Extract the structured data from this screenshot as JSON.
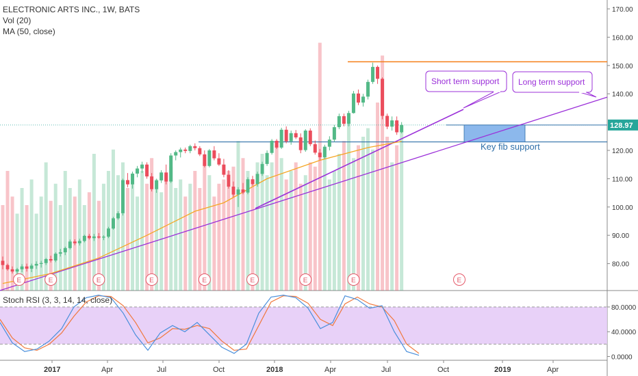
{
  "header": {
    "title": "ELECTRONIC ARTS INC., 1W, BATS",
    "vol_label": "Vol (20)",
    "ma_label": "MA (50, close)"
  },
  "stoch": {
    "label": "Stoch RSI (3, 3, 14, 14, close)"
  },
  "colors": {
    "up": "#53b987",
    "down": "#eb4d5c",
    "ma": "#f5a623",
    "trend": "#9b30d9",
    "resistance": "#f57f17",
    "fib_line": "#2f6fa8",
    "fib_box": "#7fb0ea",
    "stoch_k": "#4a8fdb",
    "stoch_d": "#f0783c",
    "stoch_band": "#e4c9f7",
    "earnings": "#e55a6a",
    "price_tag": "#26a69a"
  },
  "annotations": {
    "short_term": "Short term support",
    "long_term": "Long term support",
    "key_fib": "Key fib support"
  },
  "last_price": "128.97",
  "earnings_marker": "E",
  "chart_data": [
    {
      "type": "candlestick",
      "title": "ELECTRONIC ARTS INC., 1W, BATS",
      "x_ticks": [
        "2017",
        "Apr",
        "Jul",
        "Oct",
        "2018",
        "Apr",
        "Jul",
        "Oct",
        "2019",
        "Apr"
      ],
      "y_ticks": [
        "170.00",
        "160.00",
        "150.00",
        "140.00",
        "120.00",
        "110.00",
        "100.00",
        "90.00",
        "80.00"
      ],
      "ylim": [
        70,
        172
      ],
      "ohlc": [
        [
          81.0,
          82.5,
          78.0,
          79.5
        ],
        [
          79.5,
          80.0,
          77.5,
          78.0
        ],
        [
          78.0,
          79.0,
          76.5,
          77.2
        ],
        [
          77.2,
          78.5,
          76.0,
          78.0
        ],
        [
          78.0,
          79.8,
          77.0,
          79.0
        ],
        [
          79.0,
          80.0,
          77.2,
          78.2
        ],
        [
          78.2,
          80.0,
          77.0,
          79.3
        ],
        [
          79.3,
          80.8,
          78.1,
          79.9
        ],
        [
          79.9,
          81.0,
          78.6,
          80.2
        ],
        [
          80.2,
          82.0,
          79.5,
          81.6
        ],
        [
          81.6,
          82.8,
          80.4,
          81.1
        ],
        [
          81.1,
          84.0,
          80.5,
          83.5
        ],
        [
          83.5,
          85.2,
          82.5,
          84.0
        ],
        [
          84.0,
          86.0,
          83.0,
          85.5
        ],
        [
          85.5,
          88.5,
          85.0,
          87.8
        ],
        [
          87.8,
          88.6,
          86.5,
          87.2
        ],
        [
          87.2,
          88.8,
          86.4,
          88.0
        ],
        [
          88.0,
          90.2,
          87.5,
          89.8
        ],
        [
          89.8,
          90.5,
          88.5,
          89.0
        ],
        [
          89.0,
          90.5,
          88.0,
          89.6
        ],
        [
          89.6,
          90.8,
          88.8,
          89.2
        ],
        [
          89.2,
          90.0,
          88.3,
          89.5
        ],
        [
          89.5,
          93.0,
          89.0,
          92.4
        ],
        [
          92.4,
          96.5,
          92.0,
          96.0
        ],
        [
          96.0,
          98.5,
          95.5,
          97.8
        ],
        [
          97.8,
          110.0,
          97.0,
          109.5
        ],
        [
          109.5,
          112.0,
          107.0,
          108.0
        ],
        [
          108.0,
          112.5,
          106.5,
          111.8
        ],
        [
          111.8,
          114.5,
          110.5,
          113.6
        ],
        [
          113.6,
          116.0,
          112.0,
          115.0
        ],
        [
          115.0,
          115.8,
          110.0,
          110.8
        ],
        [
          110.8,
          112.0,
          105.5,
          106.3
        ],
        [
          106.3,
          110.0,
          105.0,
          109.4
        ],
        [
          109.4,
          113.0,
          108.5,
          112.2
        ],
        [
          112.2,
          115.0,
          108.0,
          109.0
        ],
        [
          109.0,
          119.0,
          108.5,
          118.2
        ],
        [
          118.2,
          120.0,
          116.5,
          119.4
        ],
        [
          119.4,
          121.0,
          117.5,
          120.3
        ],
        [
          120.3,
          121.0,
          119.0,
          119.8
        ],
        [
          119.8,
          122.0,
          119.0,
          121.5
        ],
        [
          121.5,
          122.5,
          120.0,
          120.8
        ],
        [
          120.8,
          121.5,
          118.0,
          118.6
        ],
        [
          118.6,
          120.0,
          114.0,
          114.5
        ],
        [
          114.5,
          120.5,
          114.0,
          120.0
        ],
        [
          120.0,
          121.5,
          116.5,
          117.2
        ],
        [
          117.2,
          119.0,
          114.5,
          115.0
        ],
        [
          115.0,
          117.0,
          110.5,
          111.4
        ],
        [
          111.4,
          113.0,
          106.5,
          107.2
        ],
        [
          107.2,
          109.0,
          103.5,
          104.4
        ],
        [
          104.4,
          107.0,
          100.0,
          106.2
        ],
        [
          106.2,
          108.5,
          104.5,
          105.1
        ],
        [
          105.1,
          110.5,
          104.5,
          109.8
        ],
        [
          109.8,
          111.0,
          107.5,
          108.1
        ],
        [
          108.1,
          112.5,
          107.2,
          111.7
        ],
        [
          111.7,
          116.0,
          111.0,
          115.2
        ],
        [
          115.2,
          120.0,
          114.5,
          119.1
        ],
        [
          119.1,
          124.0,
          118.5,
          123.4
        ],
        [
          123.4,
          124.0,
          120.5,
          121.0
        ],
        [
          121.0,
          128.0,
          120.5,
          127.3
        ],
        [
          127.3,
          128.5,
          122.5,
          123.2
        ],
        [
          123.2,
          127.0,
          122.0,
          126.1
        ],
        [
          126.1,
          127.2,
          124.0,
          124.6
        ],
        [
          124.6,
          126.0,
          119.0,
          120.1
        ],
        [
          120.1,
          127.5,
          119.5,
          127.0
        ],
        [
          127.0,
          127.8,
          121.5,
          122.2
        ],
        [
          122.2,
          123.5,
          118.5,
          119.2
        ],
        [
          119.2,
          120.5,
          116.5,
          117.6
        ],
        [
          117.6,
          122.0,
          117.0,
          121.3
        ],
        [
          121.3,
          125.0,
          120.0,
          123.8
        ],
        [
          123.8,
          129.0,
          123.0,
          128.2
        ],
        [
          128.2,
          133.0,
          127.5,
          132.1
        ],
        [
          132.1,
          133.0,
          128.5,
          129.4
        ],
        [
          129.4,
          134.0,
          128.5,
          133.2
        ],
        [
          133.2,
          141.0,
          133.0,
          140.1
        ],
        [
          140.1,
          141.5,
          136.0,
          136.9
        ],
        [
          136.9,
          140.0,
          135.5,
          139.0
        ],
        [
          139.0,
          145.0,
          138.0,
          144.2
        ],
        [
          144.2,
          151.0,
          143.5,
          149.5
        ],
        [
          149.5,
          150.0,
          143.5,
          145.3
        ],
        [
          145.3,
          145.8,
          131.0,
          132.2
        ],
        [
          132.2,
          133.0,
          127.5,
          128.4
        ],
        [
          128.4,
          132.0,
          127.0,
          130.6
        ],
        [
          130.6,
          132.0,
          125.5,
          126.4
        ],
        [
          126.4,
          130.0,
          126.0,
          128.97
        ]
      ],
      "ma50": [
        [
          0,
          73.0
        ],
        [
          10,
          76.5
        ],
        [
          20,
          82.0
        ],
        [
          30,
          90.0
        ],
        [
          40,
          98.5
        ],
        [
          46,
          101.5
        ],
        [
          55,
          110.0
        ],
        [
          66,
          116.5
        ],
        [
          76,
          121.0
        ],
        [
          83,
          123.2
        ]
      ],
      "volume_millions": [
        2.0,
        2.8,
        2.2,
        1.8,
        2.4,
        2.0,
        2.6,
        1.8,
        2.2,
        3.0,
        2.1,
        2.5,
        2.0,
        2.8,
        2.4,
        2.2,
        2.6,
        2.0,
        2.3,
        3.2,
        2.1,
        2.5,
        2.8,
        3.3,
        2.7,
        3.0,
        2.4,
        2.6,
        2.2,
        2.8,
        2.5,
        3.1,
        2.6,
        2.3,
        2.7,
        2.9,
        2.4,
        2.6,
        2.2,
        2.5,
        2.8,
        2.4,
        3.0,
        2.7,
        2.2,
        2.5,
        2.6,
        2.8,
        2.9,
        3.5,
        3.1,
        2.8,
        2.5,
        3.0,
        3.2,
        2.7,
        3.0,
        3.4,
        3.1,
        2.6,
        2.8,
        3.0,
        2.5,
        2.7,
        3.0,
        2.9,
        5.8,
        3.3,
        2.6,
        2.8,
        3.2,
        3.5,
        4.0,
        3.1,
        3.4,
        3.6,
        3.8,
        3.3,
        4.4,
        5.5,
        3.6,
        3.0,
        3.4,
        3.7
      ],
      "volume_ylim": [
        0,
        12
      ],
      "earnings_x": [
        2,
        10,
        20,
        31,
        42,
        52,
        63,
        73,
        88
      ]
    },
    {
      "type": "line",
      "title": "Stoch RSI (3, 3, 14, 14, close)",
      "y_ticks": [
        "80.0000",
        "40.0000",
        "0.0000"
      ],
      "ylim": [
        -5,
        105
      ],
      "band": [
        20,
        80
      ],
      "k": [
        [
          0,
          55
        ],
        [
          3,
          22
        ],
        [
          6,
          8
        ],
        [
          9,
          12
        ],
        [
          12,
          25
        ],
        [
          15,
          45
        ],
        [
          18,
          80
        ],
        [
          21,
          95
        ],
        [
          24,
          99
        ],
        [
          27,
          95
        ],
        [
          30,
          70
        ],
        [
          33,
          35
        ],
        [
          36,
          10
        ],
        [
          39,
          38
        ],
        [
          42,
          50
        ],
        [
          45,
          40
        ],
        [
          48,
          55
        ],
        [
          51,
          35
        ],
        [
          54,
          15
        ],
        [
          57,
          5
        ],
        [
          60,
          20
        ],
        [
          63,
          70
        ],
        [
          66,
          96
        ],
        [
          69,
          99
        ],
        [
          72,
          95
        ],
        [
          75,
          78
        ],
        [
          78,
          45
        ],
        [
          81,
          55
        ],
        [
          84,
          98
        ],
        [
          87,
          92
        ],
        [
          90,
          78
        ],
        [
          93,
          82
        ],
        [
          96,
          40
        ],
        [
          99,
          8
        ],
        [
          102,
          2
        ]
      ],
      "d": [
        [
          0,
          60
        ],
        [
          3,
          30
        ],
        [
          6,
          14
        ],
        [
          9,
          10
        ],
        [
          12,
          20
        ],
        [
          15,
          38
        ],
        [
          18,
          65
        ],
        [
          21,
          88
        ],
        [
          24,
          98
        ],
        [
          27,
          97
        ],
        [
          30,
          82
        ],
        [
          33,
          55
        ],
        [
          36,
          22
        ],
        [
          39,
          30
        ],
        [
          42,
          45
        ],
        [
          45,
          44
        ],
        [
          48,
          50
        ],
        [
          51,
          45
        ],
        [
          54,
          25
        ],
        [
          57,
          10
        ],
        [
          60,
          12
        ],
        [
          63,
          50
        ],
        [
          66,
          88
        ],
        [
          69,
          98
        ],
        [
          72,
          97
        ],
        [
          75,
          86
        ],
        [
          78,
          60
        ],
        [
          81,
          50
        ],
        [
          84,
          85
        ],
        [
          87,
          96
        ],
        [
          90,
          85
        ],
        [
          93,
          80
        ],
        [
          96,
          58
        ],
        [
          99,
          20
        ],
        [
          102,
          5
        ]
      ]
    }
  ]
}
